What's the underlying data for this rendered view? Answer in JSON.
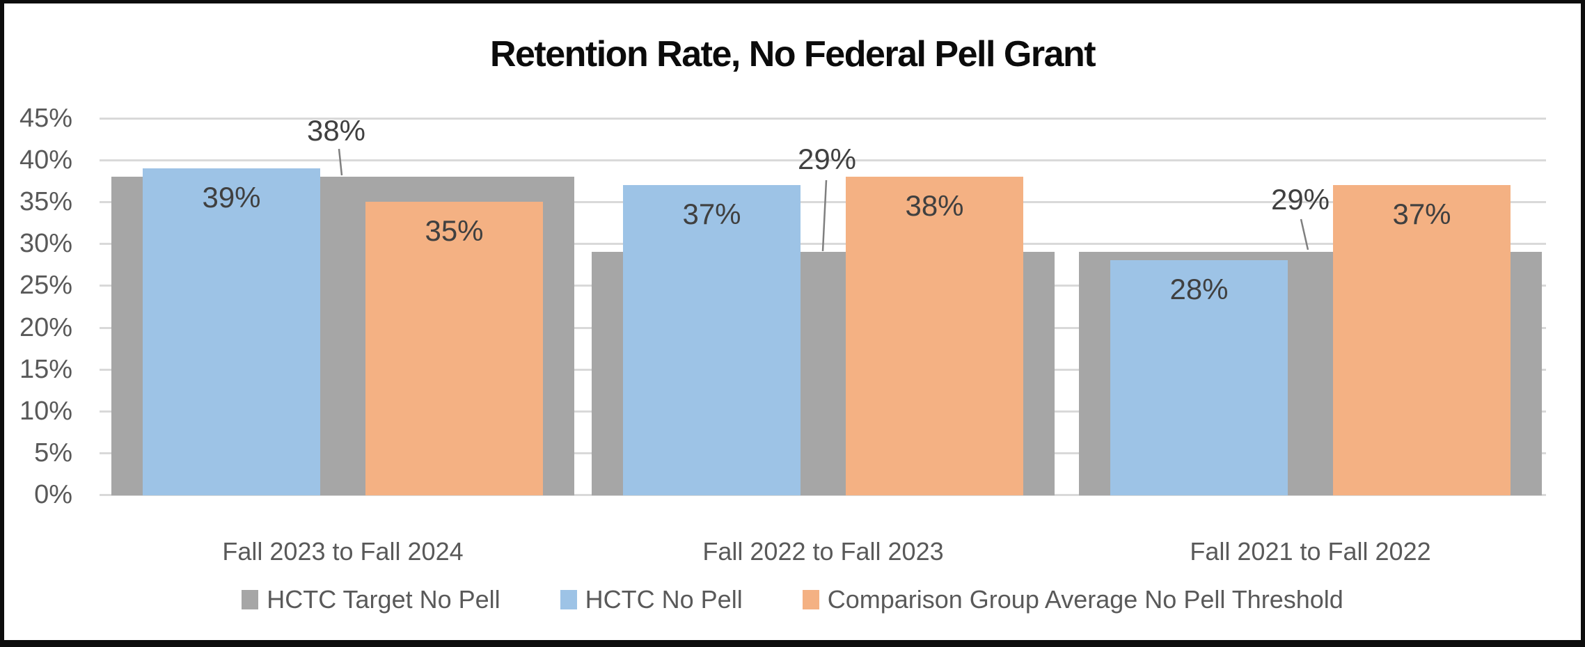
{
  "chart_data": {
    "type": "bar",
    "title": "Retention Rate, No Federal Pell Grant",
    "categories": [
      "Fall 2023 to Fall 2024",
      "Fall 2022 to Fall 2023",
      "Fall 2021 to Fall 2022"
    ],
    "series": [
      {
        "name": "HCTC Target No Pell",
        "color": "#a6a6a6",
        "values": [
          38,
          29,
          29
        ]
      },
      {
        "name": "HCTC No Pell",
        "color": "#9dc3e6",
        "values": [
          39,
          37,
          28
        ]
      },
      {
        "name": "Comparison Group Average No Pell Threshold",
        "color": "#f4b183",
        "values": [
          35,
          38,
          37
        ]
      }
    ],
    "data_label_suffix": "%",
    "y_ticks": [
      {
        "value": 0,
        "label": "0%"
      },
      {
        "value": 5,
        "label": "5%"
      },
      {
        "value": 10,
        "label": "10%"
      },
      {
        "value": 15,
        "label": "15%"
      },
      {
        "value": 20,
        "label": "20%"
      },
      {
        "value": 25,
        "label": "25%"
      },
      {
        "value": 30,
        "label": "30%"
      },
      {
        "value": 35,
        "label": "35%"
      },
      {
        "value": 40,
        "label": "40%"
      },
      {
        "value": 45,
        "label": "45%"
      }
    ],
    "ylim": [
      0,
      45
    ],
    "grid": true,
    "legend_position": "bottom",
    "colors": {
      "gridline": "#d9d9d9",
      "axis_text": "#595959",
      "data_label_text": "#404040",
      "leader_line": "#7f7f7f",
      "title_text": "#0b0b0b"
    }
  }
}
